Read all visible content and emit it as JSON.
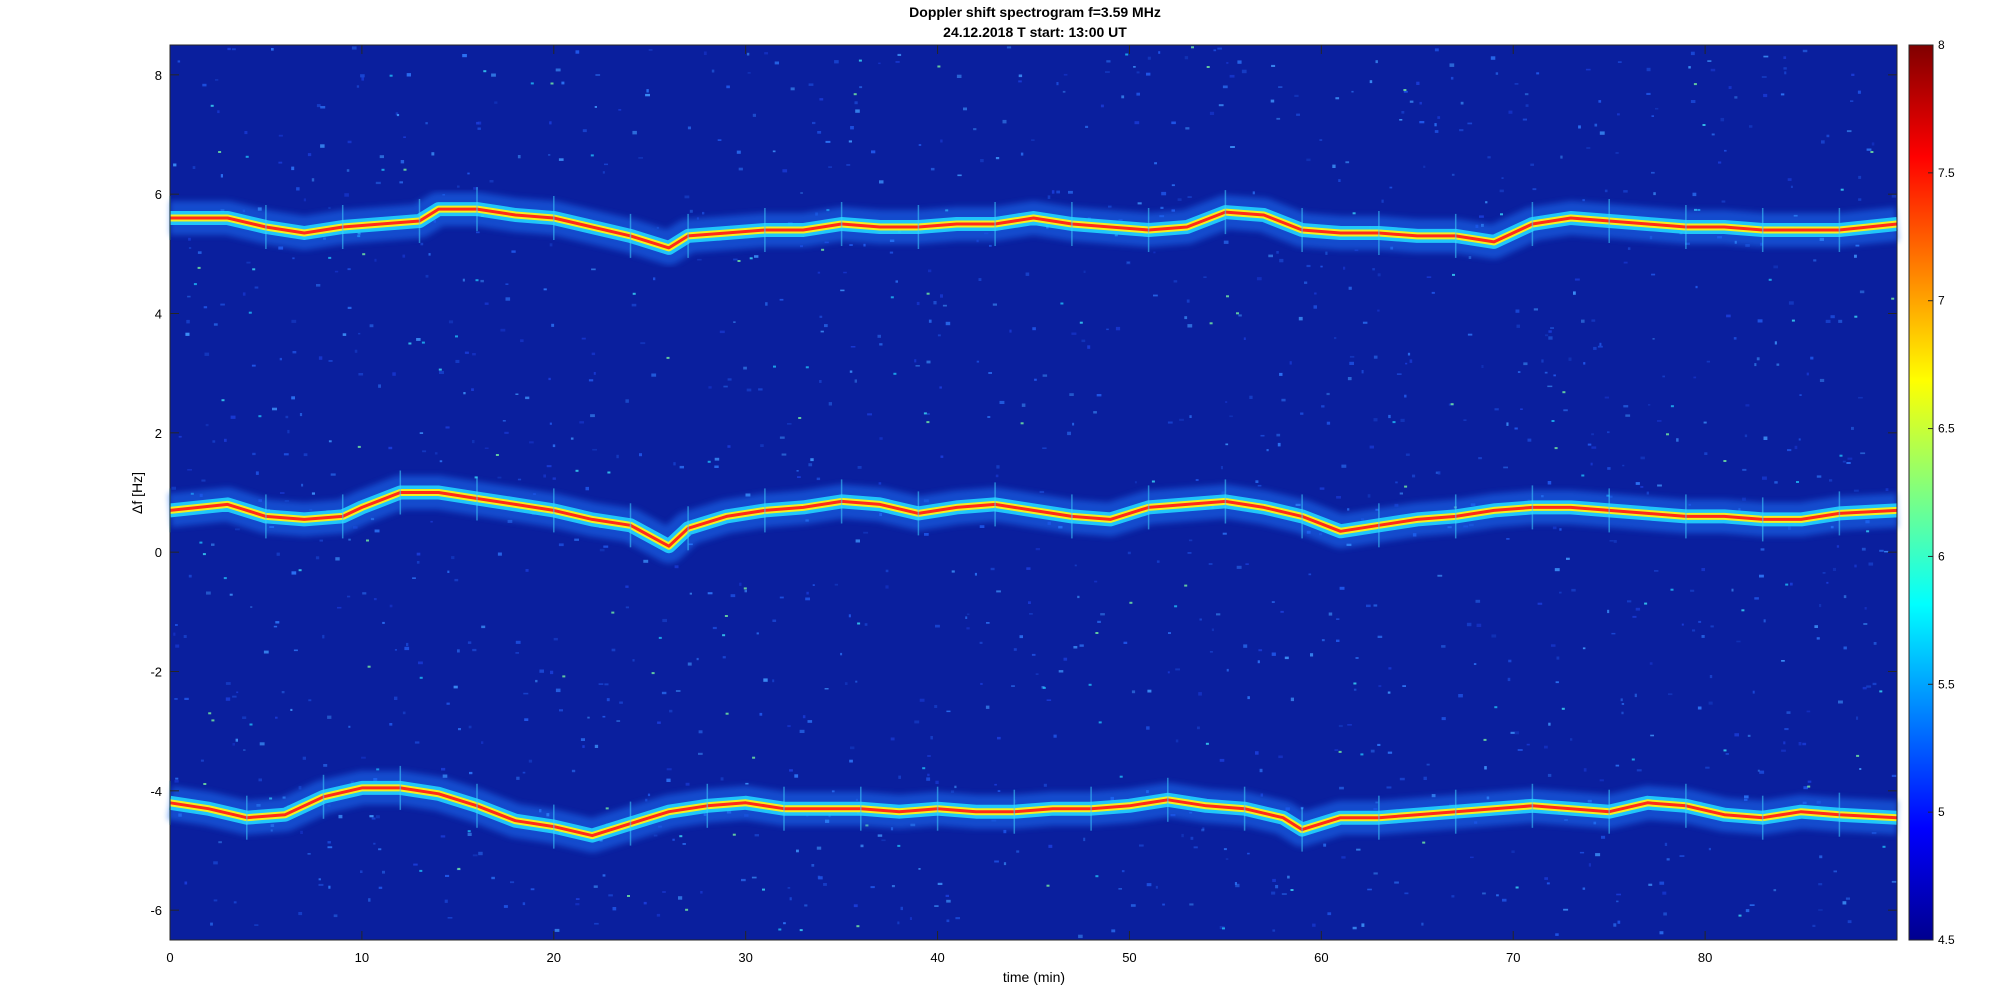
{
  "chart_data": {
    "type": "heatmap",
    "title": "Doppler shift spectrogram f=3.59 MHz",
    "subtitle": "24.12.2018   T start: 13:00 UT",
    "xlabel": "time (min)",
    "ylabel": "Δf [Hz]",
    "xlim": [
      0,
      90
    ],
    "ylim": [
      -6.5,
      8.5
    ],
    "xticks": [
      0,
      10,
      20,
      30,
      40,
      50,
      60,
      70,
      80
    ],
    "yticks": [
      -6,
      -4,
      -2,
      0,
      2,
      4,
      6,
      8
    ],
    "colorbar": {
      "colormap": "jet",
      "clim": [
        4.5,
        8
      ],
      "ticks": [
        "4.5",
        "5",
        "5.5",
        "6",
        "6.5",
        "7",
        "7.5",
        "8"
      ],
      "placement": "right"
    },
    "background_color": "#0a1f9e",
    "traces": [
      {
        "time": [
          0,
          3,
          5,
          7,
          9,
          11,
          13,
          14,
          16,
          18,
          20,
          22,
          24,
          26,
          27,
          29,
          31,
          33,
          35,
          37,
          39,
          41,
          43,
          45,
          47,
          49,
          51,
          53,
          55,
          57,
          59,
          61,
          63,
          65,
          67,
          69,
          71,
          73,
          75,
          77,
          79,
          81,
          83,
          85,
          87,
          90
        ],
        "df": [
          5.6,
          5.6,
          5.45,
          5.35,
          5.45,
          5.5,
          5.55,
          5.75,
          5.75,
          5.65,
          5.6,
          5.45,
          5.3,
          5.1,
          5.3,
          5.35,
          5.4,
          5.4,
          5.5,
          5.45,
          5.45,
          5.5,
          5.5,
          5.6,
          5.5,
          5.45,
          5.4,
          5.45,
          5.7,
          5.65,
          5.4,
          5.35,
          5.35,
          5.3,
          5.3,
          5.2,
          5.5,
          5.6,
          5.55,
          5.5,
          5.45,
          5.45,
          5.4,
          5.4,
          5.4,
          5.5
        ]
      },
      {
        "time": [
          0,
          3,
          5,
          7,
          9,
          10,
          12,
          14,
          16,
          18,
          20,
          22,
          24,
          26,
          27,
          29,
          31,
          33,
          35,
          37,
          39,
          41,
          43,
          45,
          47,
          49,
          51,
          53,
          55,
          57,
          59,
          61,
          63,
          65,
          67,
          69,
          71,
          73,
          75,
          77,
          79,
          81,
          83,
          85,
          87,
          90
        ],
        "df": [
          0.7,
          0.8,
          0.6,
          0.55,
          0.6,
          0.75,
          1.0,
          1.0,
          0.9,
          0.8,
          0.7,
          0.55,
          0.45,
          0.1,
          0.4,
          0.6,
          0.7,
          0.75,
          0.85,
          0.8,
          0.65,
          0.75,
          0.8,
          0.7,
          0.6,
          0.55,
          0.75,
          0.8,
          0.85,
          0.75,
          0.6,
          0.35,
          0.45,
          0.55,
          0.6,
          0.7,
          0.75,
          0.75,
          0.7,
          0.65,
          0.6,
          0.6,
          0.55,
          0.55,
          0.65,
          0.7
        ]
      },
      {
        "time": [
          0,
          2,
          4,
          6,
          8,
          10,
          12,
          14,
          16,
          18,
          20,
          22,
          24,
          26,
          28,
          30,
          32,
          34,
          36,
          38,
          40,
          42,
          44,
          46,
          48,
          50,
          52,
          54,
          56,
          58,
          59,
          61,
          63,
          65,
          67,
          69,
          71,
          73,
          75,
          77,
          79,
          81,
          83,
          85,
          87,
          90
        ],
        "df": [
          -4.2,
          -4.3,
          -4.45,
          -4.4,
          -4.1,
          -3.95,
          -3.95,
          -4.05,
          -4.25,
          -4.5,
          -4.6,
          -4.75,
          -4.55,
          -4.35,
          -4.25,
          -4.2,
          -4.3,
          -4.3,
          -4.3,
          -4.35,
          -4.3,
          -4.35,
          -4.35,
          -4.3,
          -4.3,
          -4.25,
          -4.15,
          -4.25,
          -4.3,
          -4.45,
          -4.65,
          -4.45,
          -4.45,
          -4.4,
          -4.35,
          -4.3,
          -4.25,
          -4.3,
          -4.35,
          -4.2,
          -4.25,
          -4.4,
          -4.45,
          -4.35,
          -4.4,
          -4.45
        ]
      }
    ]
  }
}
